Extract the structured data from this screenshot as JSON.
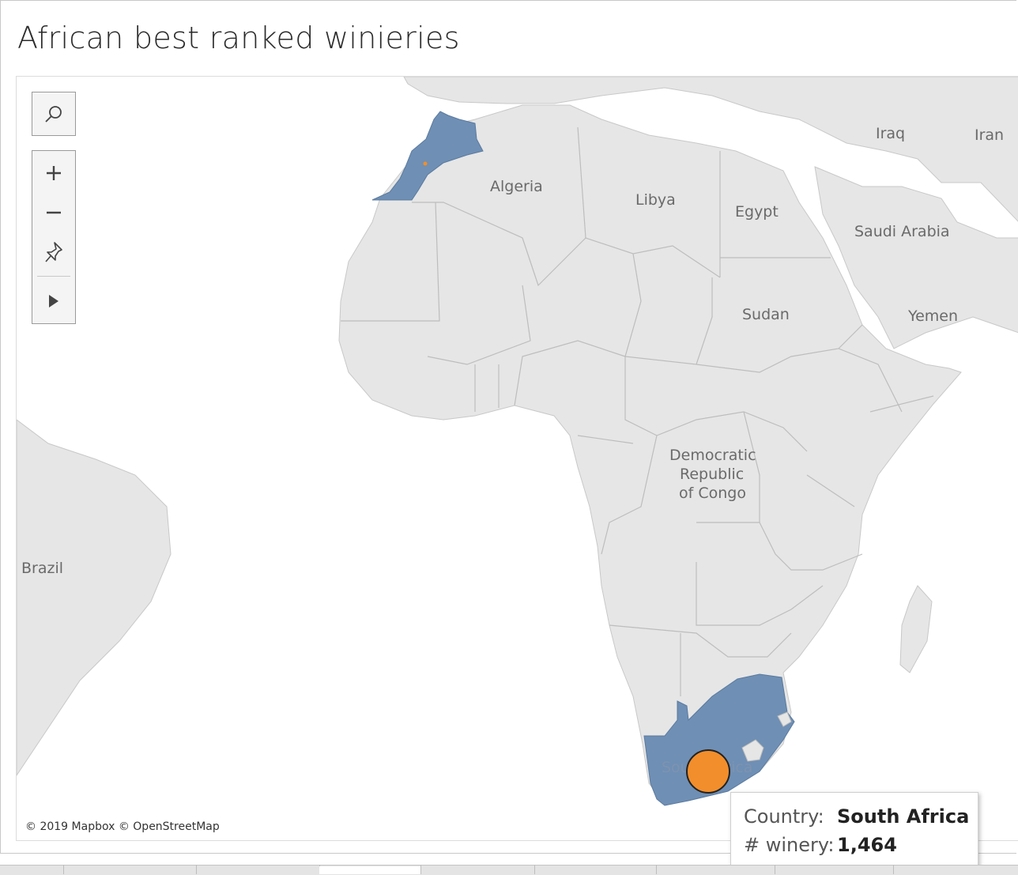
{
  "title": "African best ranked winieries",
  "map": {
    "country_labels": {
      "algeria": "Algeria",
      "libya": "Libya",
      "egypt": "Egypt",
      "sudan": "Sudan",
      "iraq": "Iraq",
      "iran": "Iran",
      "saudi_arabia": "Saudi Arabia",
      "yemen": "Yemen",
      "drc_line1": "Democratic",
      "drc_line2": "Republic",
      "drc_line3": "of Congo",
      "brazil": "Brazil",
      "south_africa": "South Africa"
    },
    "highlight_color": "#6f8fb4",
    "land_color": "#e6e6e6",
    "border_color": "#bdbdbd",
    "marker_color": "#f28e2b",
    "attribution": "© 2019 Mapbox © OpenStreetMap"
  },
  "data": [
    {
      "country": "Morocco",
      "wineries": null
    },
    {
      "country": "South Africa",
      "wineries": 1464
    }
  ],
  "controls": [
    "search-icon",
    "zoom-in-icon",
    "zoom-out-icon",
    "pin-icon",
    "play-icon"
  ],
  "tooltip": {
    "country_key": "Country:",
    "country_value": "South Africa",
    "winery_key": "# winery:",
    "winery_value": "1,464"
  }
}
